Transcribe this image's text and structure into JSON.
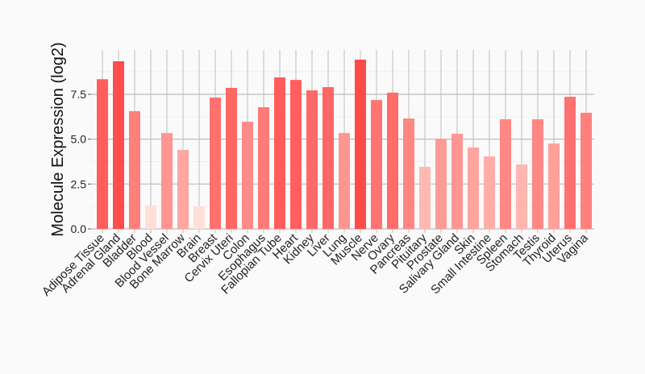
{
  "chart_data": {
    "type": "bar",
    "title": "",
    "xlabel": "",
    "ylabel": "Molecule Expression (log2)",
    "ylim": [
      0,
      10
    ],
    "yticks": [
      "0.0",
      "2.5",
      "5.0",
      "7.5"
    ],
    "grid": true,
    "categories": [
      "Adipose Tissue",
      "Adrenal Gland",
      "Bladder",
      "Blood",
      "Blood Vessel",
      "Bone Marrow",
      "Brain",
      "Breast",
      "Cervix Uteri",
      "Colon",
      "Esophagus",
      "Fallopian Tube",
      "Heart",
      "Kidney",
      "Liver",
      "Lung",
      "Muscle",
      "Nerve",
      "Ovary",
      "Pancreas",
      "Pituitary",
      "Prostate",
      "Salivary Gland",
      "Skin",
      "Small Intestine",
      "Spleen",
      "Stomach",
      "Testis",
      "Thyroid",
      "Uterus",
      "Vagina"
    ],
    "values": [
      8.34,
      9.34,
      6.56,
      1.3,
      5.34,
      4.4,
      1.26,
      7.32,
      7.86,
      5.97,
      6.78,
      8.44,
      8.3,
      7.72,
      7.9,
      5.34,
      9.43,
      7.18,
      7.59,
      6.15,
      3.46,
      5.03,
      5.3,
      4.54,
      4.04,
      6.11,
      3.59,
      6.11,
      4.76,
      7.36,
      6.47
    ],
    "color_low": "#ffe0d8",
    "color_high": "#ff4a4a"
  }
}
